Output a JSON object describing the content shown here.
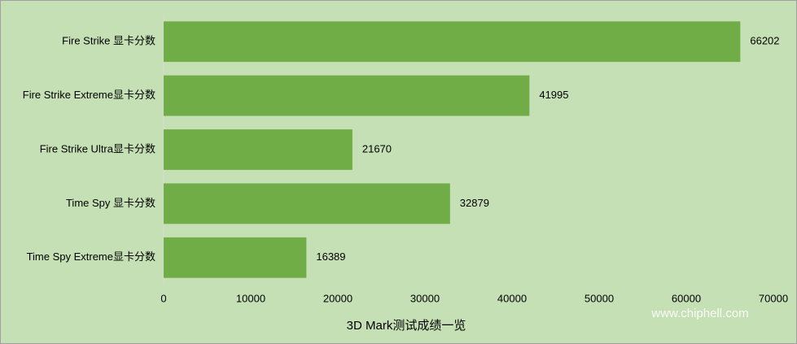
{
  "chart_data": {
    "type": "bar",
    "orientation": "horizontal",
    "categories": [
      "Fire Strike 显卡分数",
      "Fire Strike Extreme显卡分数",
      "Fire Strike Ultra显卡分数",
      "Time Spy 显卡分数",
      "Time Spy Extreme显卡分数"
    ],
    "values": [
      66202,
      41995,
      21670,
      32879,
      16389
    ],
    "color": "#70ad47",
    "xlabel": "3D Mark测试成绩一览",
    "xlim": [
      0,
      70000
    ],
    "xticks": [
      0,
      10000,
      20000,
      30000,
      40000,
      50000,
      60000,
      70000
    ],
    "grid": false,
    "watermark": "www.chiphell.com"
  }
}
